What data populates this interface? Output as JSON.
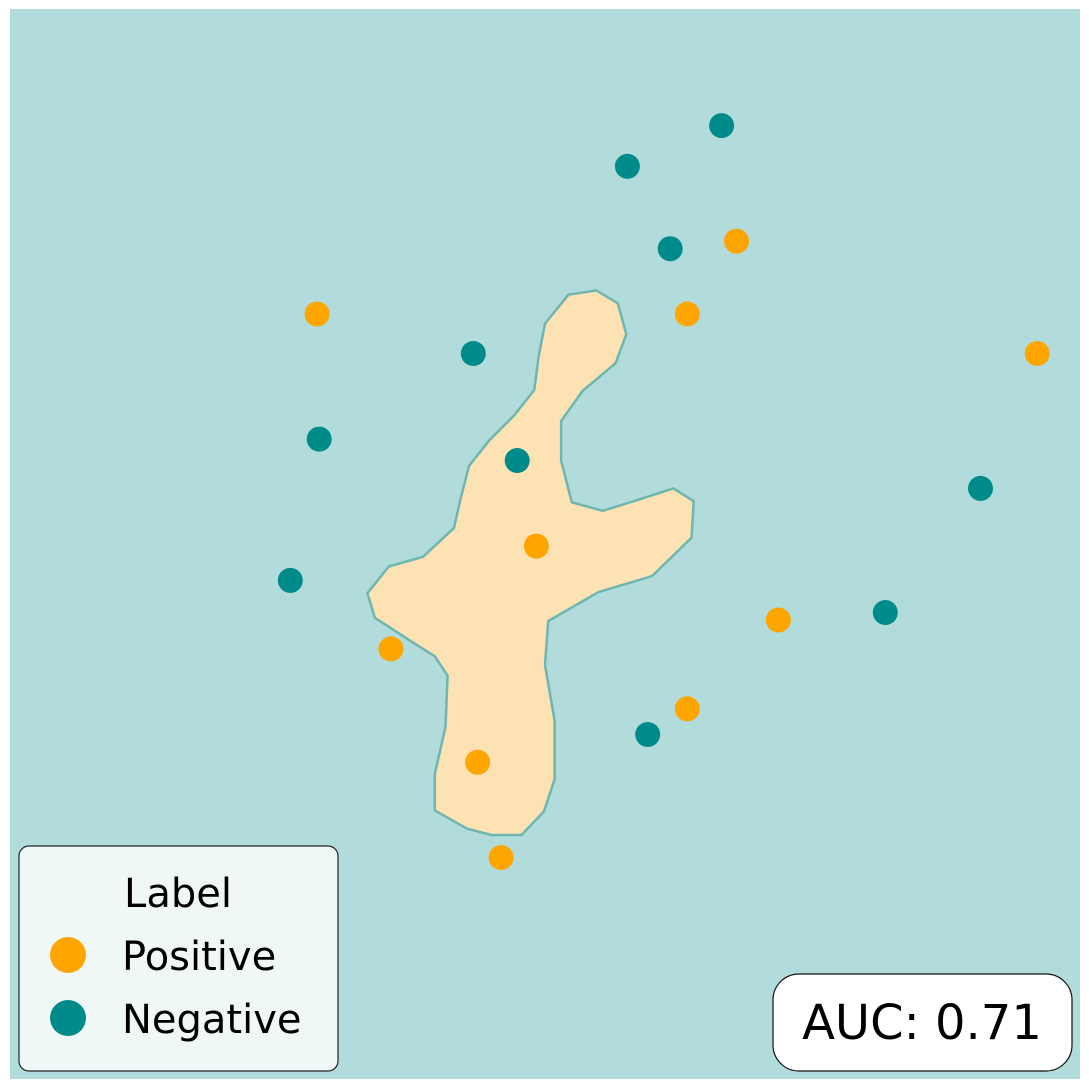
{
  "chart_data": {
    "type": "scatter",
    "title": "",
    "xlabel": "",
    "ylabel": "",
    "grid": false,
    "axes_visible": false,
    "xlim": [
      0,
      100
    ],
    "ylim": [
      0,
      100
    ],
    "legend_placement": "bottom-left",
    "legend_title": "Label",
    "colors": {
      "background_region": "#b2dbdb",
      "positive_region": "#fde3b3",
      "boundary": "#6fb6b1",
      "positive": "#ffa500",
      "negative": "#008b8b",
      "legend_bg": "#eff7f7"
    },
    "series": [
      {
        "name": "Positive",
        "color": "#ffa500",
        "points": [
          [
            28.7,
            71.5
          ],
          [
            63.3,
            71.5
          ],
          [
            67.9,
            78.3
          ],
          [
            96.0,
            67.8
          ],
          [
            49.2,
            49.8
          ],
          [
            71.8,
            42.9
          ],
          [
            35.6,
            40.2
          ],
          [
            63.3,
            34.6
          ],
          [
            43.7,
            29.6
          ],
          [
            45.9,
            20.7
          ]
        ]
      },
      {
        "name": "Negative",
        "color": "#008b8b",
        "points": [
          [
            66.5,
            89.1
          ],
          [
            57.7,
            85.3
          ],
          [
            61.7,
            77.6
          ],
          [
            43.3,
            67.8
          ],
          [
            28.9,
            59.8
          ],
          [
            47.4,
            57.8
          ],
          [
            90.7,
            55.2
          ],
          [
            26.2,
            46.6
          ],
          [
            81.8,
            43.6
          ],
          [
            59.6,
            32.2
          ]
        ]
      }
    ],
    "decision_region": {
      "class": "Positive",
      "outline": [
        [
          52.2,
          73.3
        ],
        [
          54.8,
          73.7
        ],
        [
          56.8,
          72.5
        ],
        [
          57.6,
          69.6
        ],
        [
          56.6,
          66.9
        ],
        [
          53.5,
          64.3
        ],
        [
          51.5,
          61.5
        ],
        [
          51.5,
          57.8
        ],
        [
          52.5,
          53.9
        ],
        [
          55.4,
          53.1
        ],
        [
          58.3,
          54.0
        ],
        [
          62.0,
          55.2
        ],
        [
          63.9,
          54.0
        ],
        [
          63.7,
          50.6
        ],
        [
          60.0,
          47.0
        ],
        [
          55.0,
          45.5
        ],
        [
          50.3,
          42.8
        ],
        [
          50.0,
          38.7
        ],
        [
          50.9,
          33.5
        ],
        [
          50.9,
          28.0
        ],
        [
          49.9,
          25.0
        ],
        [
          47.8,
          22.8
        ],
        [
          45.0,
          22.8
        ],
        [
          42.7,
          23.4
        ],
        [
          39.7,
          25.1
        ],
        [
          39.7,
          28.5
        ],
        [
          40.7,
          32.9
        ],
        [
          40.9,
          37.7
        ],
        [
          39.7,
          39.5
        ],
        [
          37.5,
          40.9
        ],
        [
          34.1,
          43.1
        ],
        [
          33.4,
          45.4
        ],
        [
          35.4,
          47.9
        ],
        [
          38.6,
          48.8
        ],
        [
          41.5,
          51.5
        ],
        [
          42.1,
          54.2
        ],
        [
          42.9,
          57.3
        ],
        [
          44.8,
          59.7
        ],
        [
          47.1,
          62.0
        ],
        [
          49.0,
          64.4
        ],
        [
          49.4,
          67.5
        ],
        [
          50.0,
          70.6
        ]
      ]
    },
    "annotation": {
      "text": "AUC: 0.71",
      "placement": "bottom-right"
    }
  }
}
